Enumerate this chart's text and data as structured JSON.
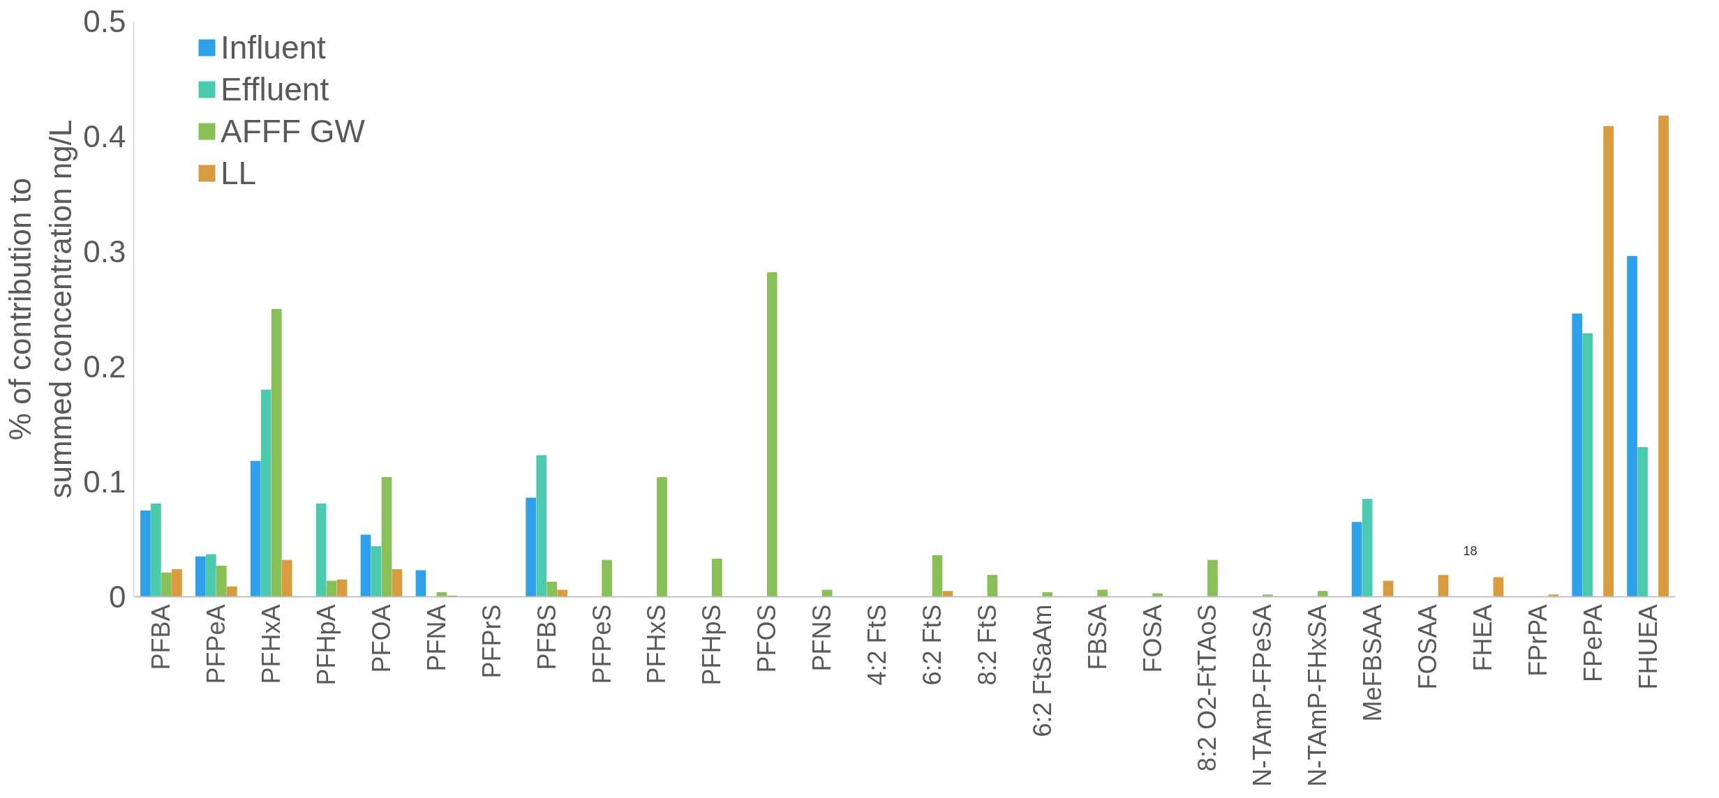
{
  "chart_data": {
    "type": "bar",
    "ylabel": "% of contribution to summed concentration ng/L",
    "categories": [
      "PFBA",
      "PFPeA",
      "PFHxA",
      "PFHpA",
      "PFOA",
      "PFNA",
      "PFPrS",
      "PFBS",
      "PFPeS",
      "PFHxS",
      "PFHpS",
      "PFOS",
      "PFNS",
      "4:2 FtS",
      "6:2 FtS",
      "8:2 FtS",
      "6:2 FtSaAm",
      "FBSA",
      "FOSA",
      "8:2 O2-FtTAoS",
      "N-TAmP-FPeSA",
      "N-TAmP-FHxSA",
      "MeFBSAA",
      "FOSAA",
      "FHEA",
      "FPrPA",
      "FPePA",
      "FHUEA"
    ],
    "series": [
      {
        "name": "Influent",
        "color": "#2fa1ea",
        "values": [
          0.075,
          0.035,
          0.118,
          null,
          0.054,
          0.023,
          null,
          0.086,
          null,
          null,
          null,
          null,
          null,
          null,
          null,
          null,
          null,
          null,
          null,
          null,
          null,
          null,
          0.065,
          null,
          null,
          null,
          0.246,
          0.296
        ]
      },
      {
        "name": "Effluent",
        "color": "#4ccaae",
        "values": [
          0.081,
          0.037,
          0.18,
          0.081,
          0.044,
          null,
          null,
          0.123,
          null,
          null,
          null,
          null,
          null,
          null,
          null,
          null,
          null,
          null,
          null,
          null,
          null,
          null,
          0.085,
          null,
          null,
          null,
          0.229,
          0.13
        ]
      },
      {
        "name": "AFFF GW",
        "color": "#88c057",
        "values": [
          0.021,
          0.027,
          0.25,
          0.014,
          0.104,
          0.004,
          null,
          0.013,
          0.032,
          0.104,
          0.033,
          0.282,
          0.006,
          null,
          0.036,
          0.019,
          0.004,
          0.006,
          0.003,
          0.032,
          0.002,
          0.005,
          null,
          null,
          null,
          null,
          null,
          null
        ]
      },
      {
        "name": "LL",
        "color": "#d89b3e",
        "values": [
          0.024,
          0.009,
          0.032,
          0.015,
          0.024,
          0.001,
          null,
          0.006,
          null,
          null,
          null,
          null,
          null,
          null,
          0.005,
          null,
          null,
          null,
          null,
          null,
          null,
          null,
          0.014,
          0.019,
          0.017,
          0.002,
          0.409,
          0.418
        ]
      }
    ],
    "ylim": [
      0,
      0.5
    ],
    "yticks": [
      0,
      0.1,
      0.2,
      0.3,
      0.4,
      0.5
    ],
    "legend": "top left",
    "annotations": [
      "18"
    ]
  }
}
